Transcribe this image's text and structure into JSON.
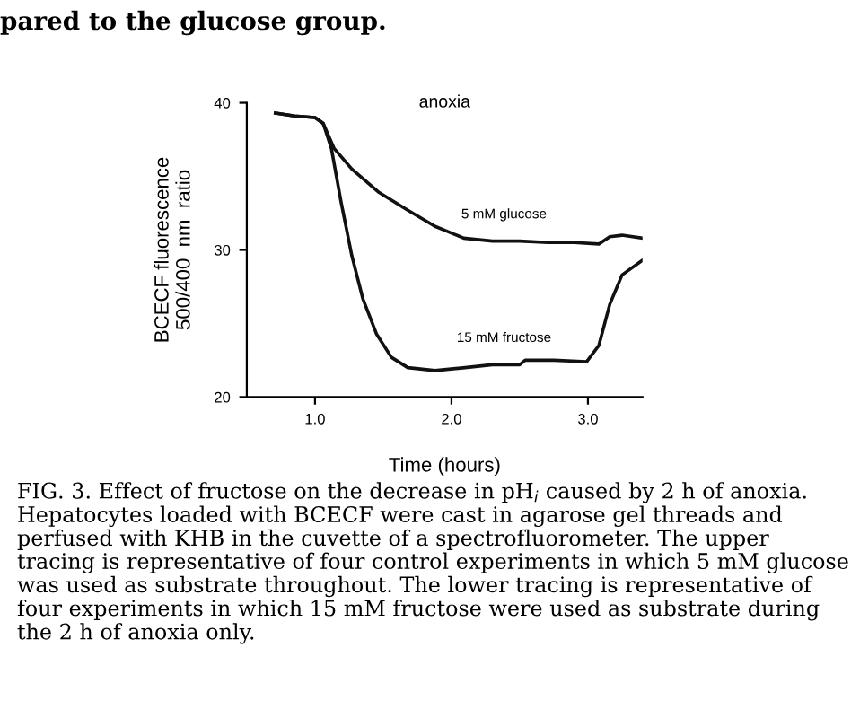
{
  "chart_data": {
    "type": "line",
    "xlabel": "Time (hours)",
    "ylabel": "BCECF fluorescence\n500/400  nm  ratio",
    "series": [
      {
        "name": "5 mM glucose",
        "color": "#111111",
        "x": [
          0.71,
          0.85,
          1.0,
          1.06,
          1.14,
          1.27,
          1.47,
          1.68,
          1.88,
          2.09,
          2.3,
          2.5,
          2.71,
          2.9,
          3.08,
          3.16,
          3.25,
          3.4
        ],
        "values": [
          39.3,
          39.1,
          39.0,
          38.6,
          36.9,
          35.5,
          33.9,
          32.7,
          31.6,
          30.8,
          30.6,
          30.6,
          30.5,
          30.5,
          30.4,
          30.9,
          31.0,
          30.8
        ]
      },
      {
        "name": "15 mM fructose",
        "color": "#111111",
        "x": [
          0.71,
          0.85,
          1.0,
          1.06,
          1.12,
          1.19,
          1.27,
          1.35,
          1.45,
          1.56,
          1.68,
          1.88,
          2.1,
          2.3,
          2.5,
          2.54,
          2.75,
          2.99,
          3.08,
          3.16,
          3.25,
          3.4
        ],
        "values": [
          39.3,
          39.1,
          39.0,
          38.6,
          36.9,
          33.3,
          29.6,
          26.7,
          24.3,
          22.7,
          22.0,
          21.8,
          22.0,
          22.2,
          22.2,
          22.5,
          22.5,
          22.4,
          23.5,
          26.3,
          28.3,
          29.3
        ]
      }
    ],
    "xlim": [
      0.5,
      3.4
    ],
    "xticks": [
      {
        "value": 1.0,
        "label": "1.0"
      },
      {
        "value": 2.0,
        "label": "2.0"
      },
      {
        "value": 3.0,
        "label": "3.0"
      }
    ],
    "ylim": [
      20,
      40
    ],
    "yticks": [
      20,
      30,
      40
    ],
    "grid": false,
    "legend": false,
    "annotations": [
      "pared to the glucose group.",
      "anoxia",
      "FIG. 3. Effect of fructose on the decrease in pH$_{i}$ caused by 2 h of anoxia. Hepatocytes loaded with BCECF were cast in agarose gel threads and perfused with KHB in the cuvette of a spectrofluorometer. The upper tracing is representative of four control experiments in which 5 mM glucose was used as substrate throughout. The lower tracing is representative of four experiments in which 15 mM fructose were used as substrate during the 2 h of anoxia only."
    ]
  }
}
